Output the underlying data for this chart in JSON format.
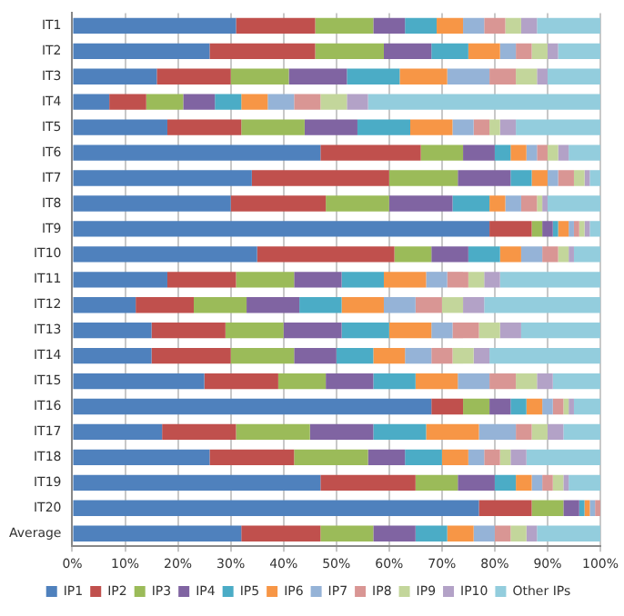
{
  "chart_data": {
    "type": "bar",
    "orientation": "horizontal",
    "stacked": true,
    "categories": [
      "IT1",
      "IT2",
      "IT3",
      "IT4",
      "IT5",
      "IT6",
      "IT7",
      "IT8",
      "IT9",
      "IT10",
      "IT11",
      "IT12",
      "IT13",
      "IT14",
      "IT15",
      "IT16",
      "IT17",
      "IT18",
      "IT19",
      "IT20",
      "Average"
    ],
    "series": [
      {
        "name": "IP1",
        "color": "#4f81bd",
        "values": [
          31,
          26,
          16,
          7,
          18,
          47,
          34,
          30,
          79,
          35,
          18,
          12,
          15,
          15,
          25,
          68,
          17,
          26,
          47,
          77,
          32
        ]
      },
      {
        "name": "IP2",
        "color": "#c0504d",
        "values": [
          15,
          20,
          14,
          7,
          14,
          19,
          26,
          18,
          8,
          26,
          13,
          11,
          14,
          15,
          14,
          6,
          14,
          16,
          18,
          10,
          15
        ]
      },
      {
        "name": "IP3",
        "color": "#9bbb59",
        "values": [
          11,
          13,
          11,
          7,
          12,
          8,
          13,
          12,
          2,
          7,
          11,
          10,
          11,
          12,
          9,
          5,
          14,
          14,
          8,
          6,
          10
        ]
      },
      {
        "name": "IP4",
        "color": "#8064a2",
        "values": [
          6,
          9,
          11,
          6,
          10,
          6,
          10,
          12,
          2,
          7,
          9,
          10,
          11,
          8,
          9,
          4,
          12,
          7,
          7,
          3,
          8
        ]
      },
      {
        "name": "IP5",
        "color": "#4bacc6",
        "values": [
          6,
          7,
          10,
          5,
          10,
          3,
          4,
          7,
          1,
          6,
          8,
          8,
          9,
          7,
          8,
          3,
          10,
          7,
          4,
          1,
          6
        ]
      },
      {
        "name": "IP6",
        "color": "#f79646",
        "values": [
          5,
          6,
          9,
          5,
          8,
          3,
          3,
          3,
          2,
          4,
          8,
          8,
          8,
          6,
          8,
          3,
          10,
          5,
          3,
          1,
          5
        ]
      },
      {
        "name": "IP7",
        "color": "#95b3d7",
        "values": [
          4,
          3,
          8,
          5,
          4,
          2,
          2,
          3,
          1,
          4,
          4,
          6,
          4,
          5,
          6,
          2,
          7,
          3,
          2,
          1,
          4
        ]
      },
      {
        "name": "IP8",
        "color": "#d99694",
        "values": [
          4,
          3,
          5,
          5,
          3,
          2,
          3,
          3,
          1,
          3,
          4,
          5,
          5,
          4,
          5,
          2,
          3,
          3,
          2,
          1,
          3
        ]
      },
      {
        "name": "IP9",
        "color": "#c3d69b",
        "values": [
          3,
          3,
          4,
          5,
          2,
          2,
          2,
          1,
          1,
          2,
          3,
          4,
          4,
          4,
          4,
          1,
          3,
          2,
          2,
          0,
          3
        ]
      },
      {
        "name": "IP10",
        "color": "#b3a2c7",
        "values": [
          3,
          2,
          2,
          4,
          3,
          2,
          1,
          1,
          1,
          1,
          3,
          4,
          4,
          3,
          3,
          1,
          3,
          3,
          1,
          0,
          2
        ]
      },
      {
        "name": "Other IPs",
        "color": "#93cddd",
        "values": [
          12,
          8,
          10,
          44,
          16,
          6,
          2,
          10,
          2,
          5,
          19,
          22,
          15,
          21,
          9,
          5,
          7,
          14,
          6,
          0,
          12
        ]
      }
    ],
    "xlim": [
      0,
      100
    ],
    "xticks": [
      {
        "value": 0,
        "label": "0%"
      },
      {
        "value": 10,
        "label": "10%"
      },
      {
        "value": 20,
        "label": "20%"
      },
      {
        "value": 30,
        "label": "30%"
      },
      {
        "value": 40,
        "label": "40%"
      },
      {
        "value": 50,
        "label": "50%"
      },
      {
        "value": 60,
        "label": "60%"
      },
      {
        "value": 70,
        "label": "70%"
      },
      {
        "value": 80,
        "label": "80%"
      },
      {
        "value": 90,
        "label": "90%"
      },
      {
        "value": 100,
        "label": "100%"
      }
    ],
    "grid": "x",
    "legend": "bottom"
  }
}
